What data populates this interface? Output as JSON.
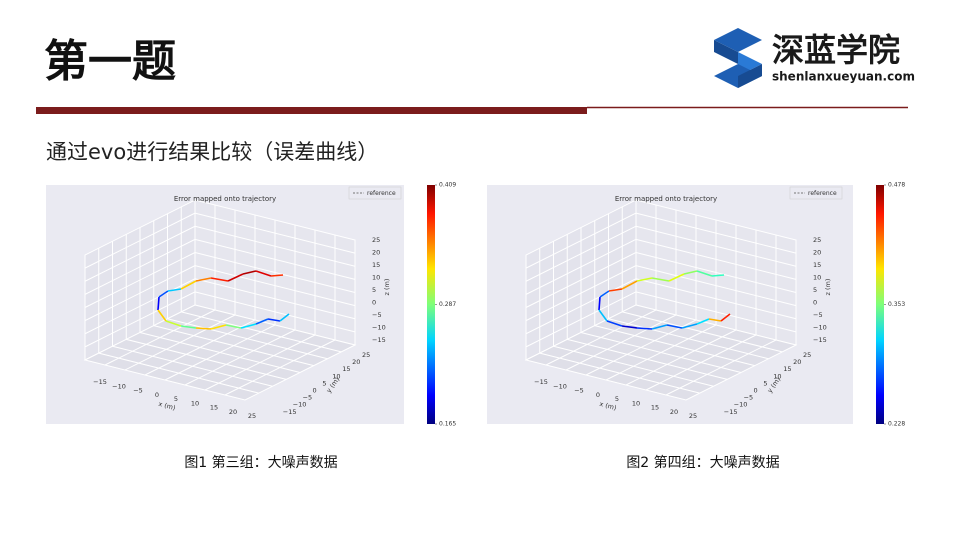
{
  "header": {
    "title": "第一题",
    "logo_name": "深蓝学院",
    "logo_url": "shenlanxueyuan.com"
  },
  "subtitle": "通过evo进行结果比较（误差曲线）",
  "figures": [
    {
      "plot_title": "Error mapped onto trajectory",
      "legend": "reference",
      "x_label": "x (m)",
      "y_label": "y (m)",
      "z_label": "z (m)",
      "x_ticks": [
        "−15",
        "−10",
        "−5",
        "0",
        "5",
        "10",
        "15",
        "20",
        "25"
      ],
      "y_ticks": [
        "25",
        "20",
        "15",
        "10",
        "5",
        "0",
        "−5",
        "−10",
        "−15"
      ],
      "z_ticks": [
        "25",
        "20",
        "15",
        "10",
        "5",
        "0",
        "−5",
        "−10",
        "−15"
      ],
      "colorbar_ticks": [
        "0.409",
        "0.287",
        "0.165"
      ],
      "caption": "图1 第三组：大噪声数据"
    },
    {
      "plot_title": "Error mapped onto trajectory",
      "legend": "reference",
      "x_label": "x (m)",
      "y_label": "y (m)",
      "z_label": "z (m)",
      "x_ticks": [
        "−15",
        "−10",
        "−5",
        "0",
        "5",
        "10",
        "15",
        "20",
        "25"
      ],
      "y_ticks": [
        "25",
        "20",
        "15",
        "10",
        "5",
        "0",
        "−5",
        "−10",
        "−15"
      ],
      "z_ticks": [
        "25",
        "20",
        "15",
        "10",
        "5",
        "0",
        "−5",
        "−10",
        "−15"
      ],
      "colorbar_ticks": [
        "0.478",
        "0.353",
        "0.228"
      ],
      "caption": "图2 第四组：大噪声数据"
    }
  ]
}
